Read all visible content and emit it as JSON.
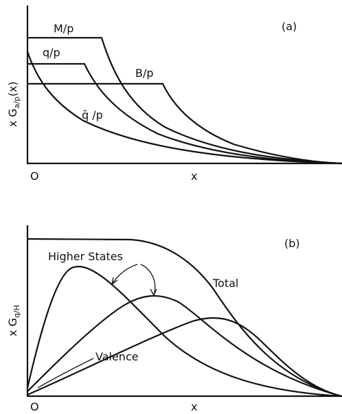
{
  "panel_a": {
    "tag": "(a)",
    "ylabel": "x G",
    "ylabel_sub": "a/p",
    "ylabel_arg": "(x)",
    "xlabel": "x",
    "origin": "O",
    "curve_labels": {
      "M": "M/p",
      "q": "q/p",
      "B": "B/p",
      "qbar": "q̄ /p"
    }
  },
  "panel_b": {
    "tag": "(b)",
    "ylabel": "x G",
    "ylabel_sub": "q/H",
    "xlabel": "x",
    "origin": "O",
    "curve_labels": {
      "total": "Total",
      "higher": "Higher States",
      "valence": "Valence"
    }
  }
}
